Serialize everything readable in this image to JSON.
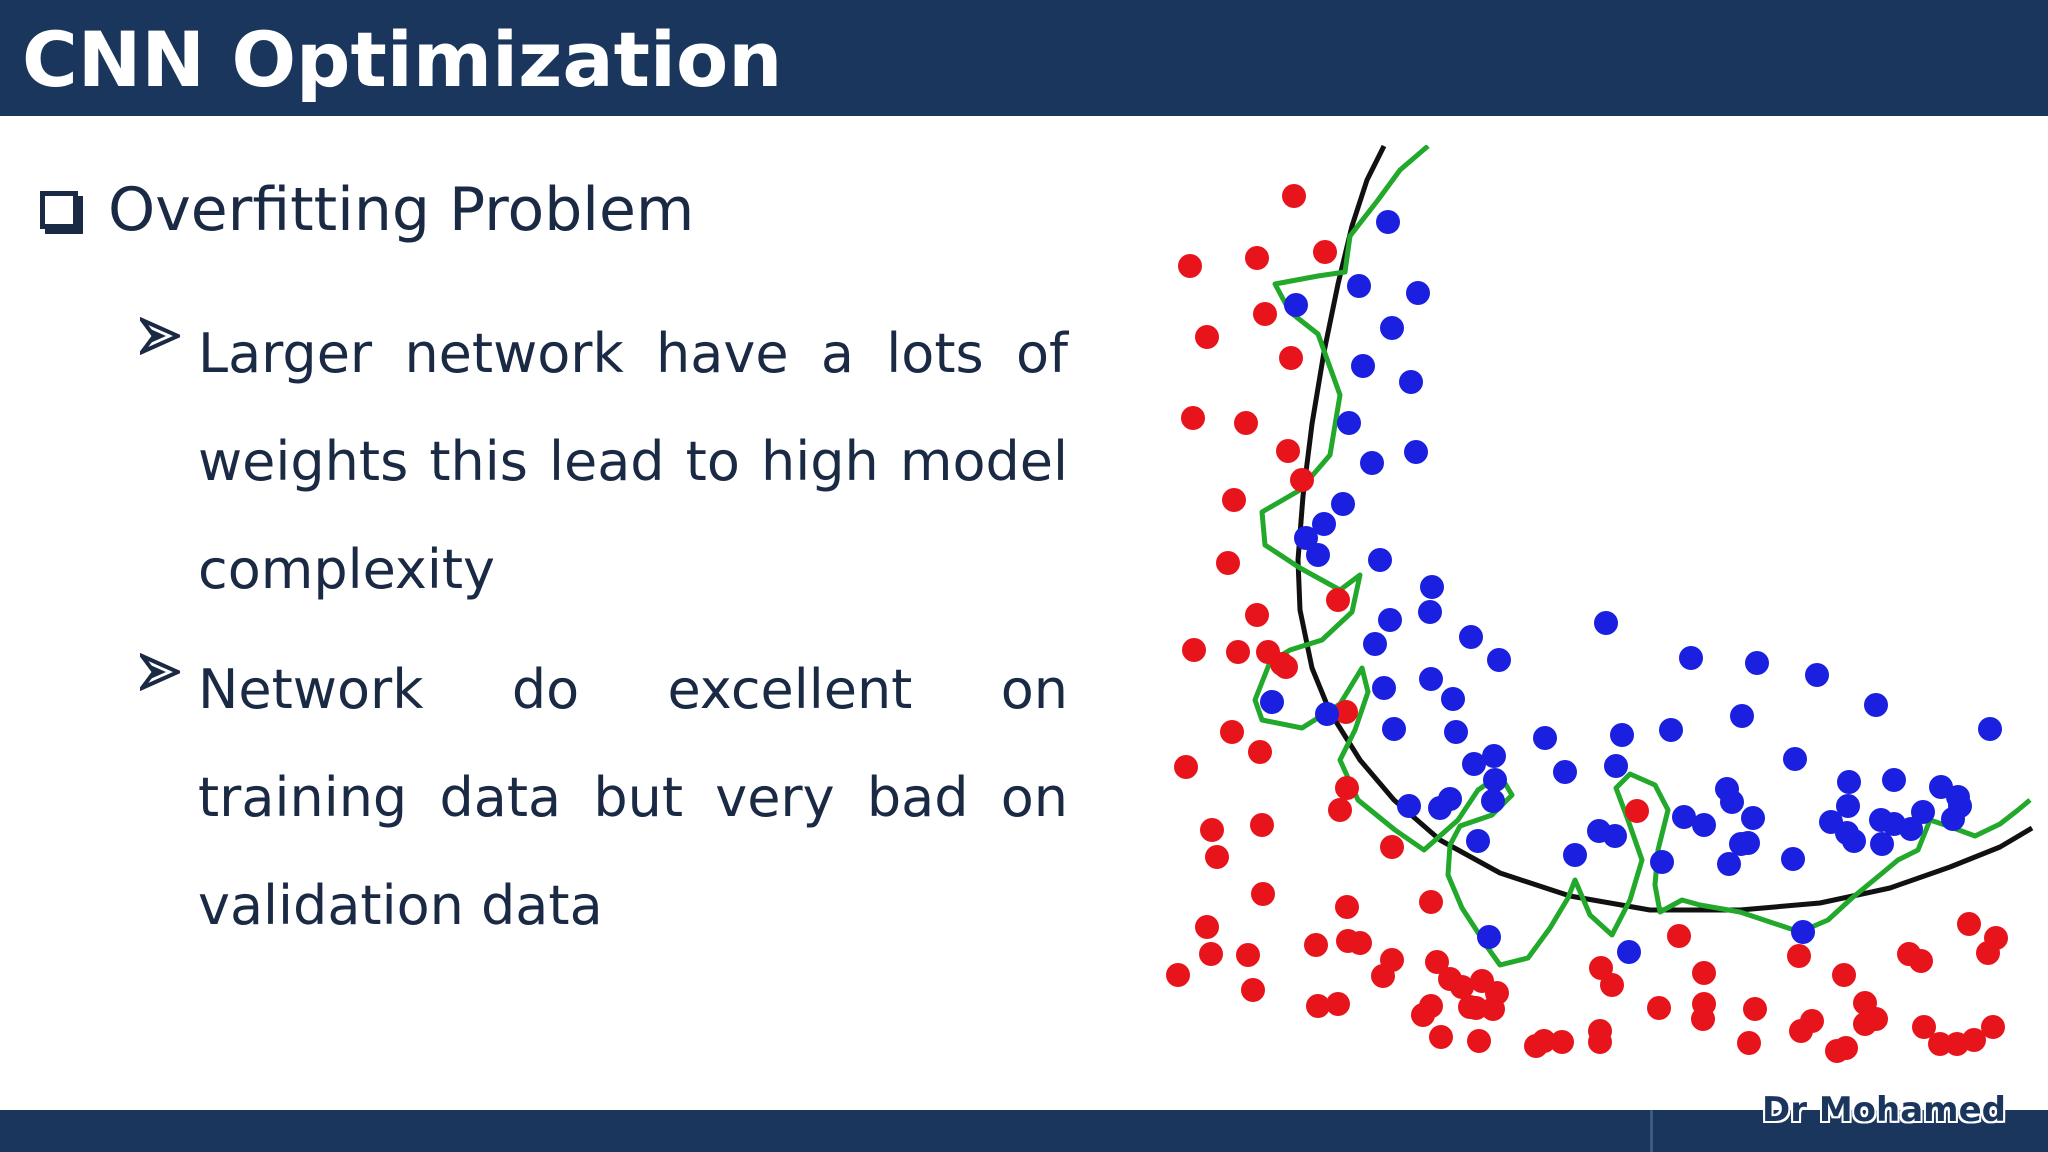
{
  "slide": {
    "title": "CNN Optimization",
    "heading": "Overfitting Problem",
    "bullets": [
      "Larger network have a lots of weights this lead to high model complexity",
      "Network do excellent on training data but very bad on validation data"
    ],
    "author": "Dr Mohamed"
  },
  "colors": {
    "header_bar": "#1b365d",
    "text": "#1b2a44",
    "class_red": "#e8141b",
    "class_blue": "#1a1fe0",
    "smooth_boundary": "#111111",
    "overfit_boundary": "#22a82a"
  },
  "icons": {
    "heading_bullet": "checkbox-icon",
    "list_bullet": "arrow-icon"
  }
}
